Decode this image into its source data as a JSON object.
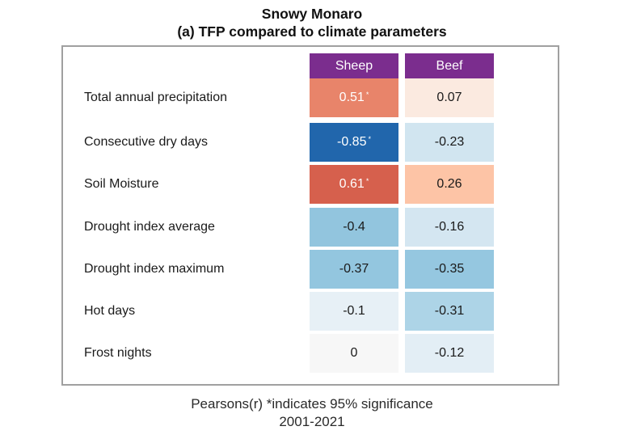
{
  "chart_data": {
    "type": "heatmap",
    "title": "Snowy Monaro",
    "subtitle": "(a) TFP compared to climate parameters",
    "columns": [
      "Sheep",
      "Beef"
    ],
    "header_color": "#7B2D8E",
    "rows": [
      "Total annual precipitation",
      "Consecutive dry days",
      "Soil Moisture",
      "Drought index average",
      "Drought index maximum",
      "Hot days",
      "Frost nights"
    ],
    "values": [
      [
        0.51,
        0.07
      ],
      [
        -0.85,
        -0.23
      ],
      [
        0.61,
        0.26
      ],
      [
        -0.4,
        -0.16
      ],
      [
        -0.37,
        -0.35
      ],
      [
        -0.1,
        -0.31
      ],
      [
        0,
        -0.12
      ]
    ],
    "labels": [
      [
        "0.51",
        "0.07"
      ],
      [
        "-0.85",
        "-0.23"
      ],
      [
        "0.61",
        "0.26"
      ],
      [
        "-0.4",
        "-0.16"
      ],
      [
        "-0.37",
        "-0.35"
      ],
      [
        "-0.1",
        "-0.31"
      ],
      [
        "0",
        "-0.12"
      ]
    ],
    "significant": [
      [
        true,
        false
      ],
      [
        true,
        false
      ],
      [
        true,
        false
      ],
      [
        false,
        false
      ],
      [
        false,
        false
      ],
      [
        false,
        false
      ],
      [
        false,
        false
      ]
    ],
    "colors": [
      [
        "#E8846A",
        "#FBEAE0"
      ],
      [
        "#2166AC",
        "#D1E5F0"
      ],
      [
        "#D6604D",
        "#FDC4A6"
      ],
      [
        "#92C5DE",
        "#D4E6F1"
      ],
      [
        "#93C6DF",
        "#95C7E0"
      ],
      [
        "#E7F0F6",
        "#ADD4E7"
      ],
      [
        "#F7F7F7",
        "#E3EEF5"
      ]
    ],
    "significance_marker": "*",
    "footnote": "Pearsons(r) *indicates 95% significance",
    "period": "2001-2021",
    "colorscale": "diverging red-blue",
    "value_range": [
      -1,
      1
    ]
  }
}
